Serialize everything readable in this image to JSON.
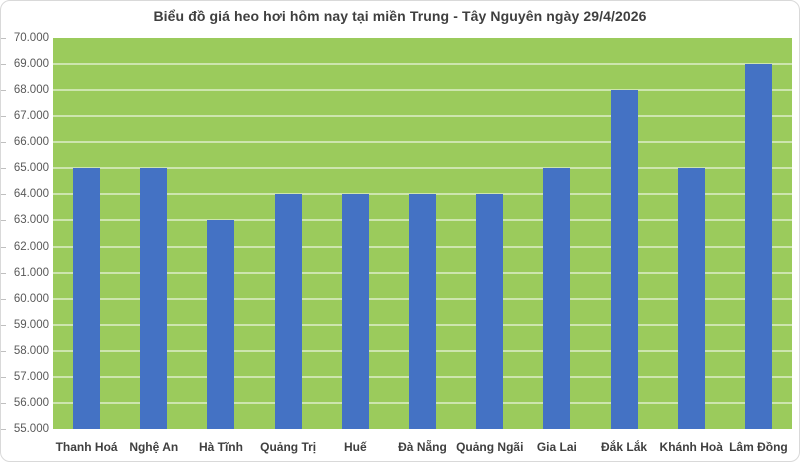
{
  "chart_data": {
    "type": "bar",
    "title": "Biểu đồ giá heo hơi hôm nay tại miền Trung - Tây Nguyên ngày 29/4/2026",
    "categories": [
      "Thanh Hoá",
      "Nghệ An",
      "Hà Tĩnh",
      "Quảng Trị",
      "Huế",
      "Đà Nẵng",
      "Quảng Ngãi",
      "Gia Lai",
      "Đắk Lắk",
      "Khánh Hoà",
      "Lâm Đồng"
    ],
    "values": [
      65000,
      65000,
      63000,
      64000,
      64000,
      64000,
      64000,
      65000,
      68000,
      65000,
      69000
    ],
    "xlabel": "",
    "ylabel": "",
    "ylim": [
      55000,
      70000
    ],
    "ytick_step": 1000,
    "ytick_labels": [
      "70.000",
      "69.000",
      "68.000",
      "67.000",
      "66.000",
      "65.000",
      "64.000",
      "63.000",
      "62.000",
      "61.000",
      "60.000",
      "59.000",
      "58.000",
      "57.000",
      "56.000",
      "55.000"
    ],
    "grid": true,
    "legend": false,
    "colors": {
      "bar": "#4472C4",
      "plot_background": "#9BCB5C",
      "gridline": "rgba(255,255,255,0.5)",
      "title_text": "#3F3F3F",
      "axis_text": "#595959",
      "category_text": "#404040",
      "card_border": "#D9D9D9",
      "tick_mark": "#BFBFBF"
    }
  }
}
